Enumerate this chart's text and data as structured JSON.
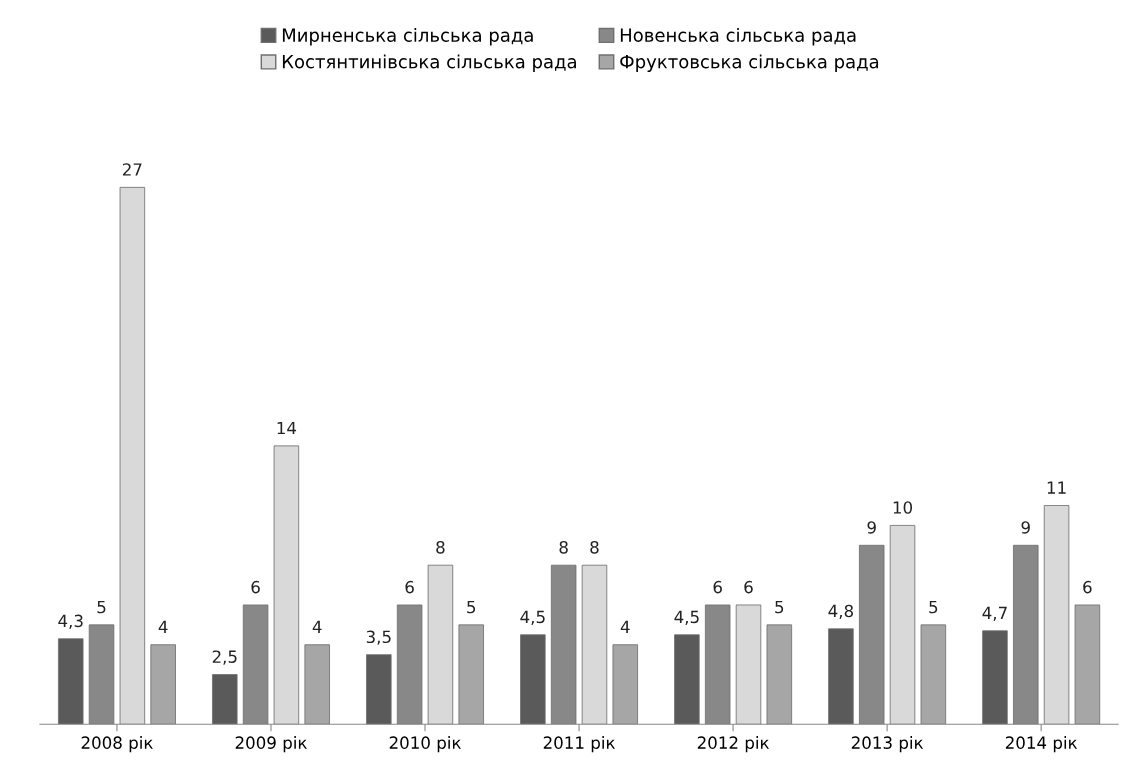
{
  "chart_data": {
    "type": "bar",
    "categories": [
      "2008 рік",
      "2009 рік",
      "2010 рік",
      "2011 рік",
      "2012 рік",
      "2013 рік",
      "2014 рік"
    ],
    "series": [
      {
        "name": "Мирненська сільська рада",
        "color": "#5a5a5a",
        "values": [
          4.3,
          2.5,
          3.5,
          4.5,
          4.5,
          4.8,
          4.7
        ],
        "value_labels": [
          "4,3",
          "2,5",
          "3,5",
          "4,5",
          "4,5",
          "4,8",
          "4,7"
        ]
      },
      {
        "name": "Новенська сільська рада",
        "color": "#888888",
        "values": [
          5,
          6,
          6,
          8,
          6,
          9,
          9
        ],
        "value_labels": [
          "5",
          "6",
          "6",
          "8",
          "6",
          "9",
          "9"
        ]
      },
      {
        "name": "Костянтинівська сільська рада",
        "color": "#d9d9d9",
        "values": [
          27,
          14,
          8,
          8,
          6,
          10,
          11
        ],
        "value_labels": [
          "27",
          "14",
          "8",
          "8",
          "6",
          "10",
          "11"
        ]
      },
      {
        "name": "Фруктовська сільська рада",
        "color": "#a6a6a6",
        "values": [
          4,
          4,
          5,
          4,
          5,
          5,
          6
        ],
        "value_labels": [
          "4",
          "4",
          "5",
          "4",
          "5",
          "5",
          "6"
        ]
      }
    ],
    "tick_labels": "x",
    "legend": "top",
    "grid": false
  }
}
